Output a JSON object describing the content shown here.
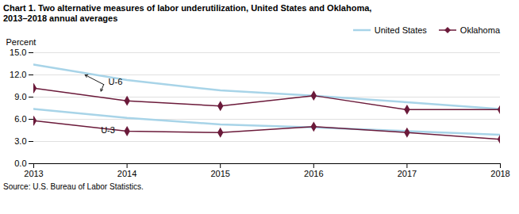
{
  "chart_data": {
    "type": "line",
    "title": "Chart 1. Two alternative measures of labor underutilization, United States and Oklahoma,",
    "subtitle": "2013–2018  annual averages",
    "ylabel": "Percent",
    "source": "Source: U.S. Bureau of Labor Statistics.",
    "x": [
      2013,
      2014,
      2015,
      2016,
      2017,
      2018
    ],
    "xlim": [
      2013,
      2018
    ],
    "xticks": [
      2013,
      2014,
      2015,
      2016,
      2017,
      2018
    ],
    "ylim": [
      0,
      15
    ],
    "yticks": [
      {
        "value": 0,
        "label": "0.0"
      },
      {
        "value": 3,
        "label": "3.0"
      },
      {
        "value": 6,
        "label": "6.0"
      },
      {
        "value": 9,
        "label": "9.0"
      },
      {
        "value": 12,
        "label": "12.0"
      },
      {
        "value": 15,
        "label": "15.0"
      }
    ],
    "grid": true,
    "legend": "upper right",
    "series": [
      {
        "name": "United States",
        "color": "#a8d4e8",
        "values": [
          13.4,
          11.3,
          9.9,
          9.2,
          8.3,
          7.4
        ]
      },
      {
        "name": "United States",
        "color": "#a8d4e8",
        "values": [
          7.4,
          6.2,
          5.3,
          4.9,
          4.4,
          3.9
        ]
      },
      {
        "name": "Oklahoma",
        "color": "#6b1a3a",
        "marker": "diamond",
        "values": [
          10.2,
          8.5,
          7.8,
          9.2,
          7.3,
          7.3
        ]
      },
      {
        "name": "Oklahoma",
        "color": "#6b1a3a",
        "marker": "diamond",
        "values": [
          5.8,
          4.4,
          4.2,
          5.0,
          4.2,
          3.3
        ]
      }
    ],
    "annotations": [
      {
        "text": "U-6",
        "x": 2013.8,
        "y": 11.0,
        "arrow_from": [
          2013.75,
          10.7
        ],
        "arrows_to": [
          [
            2013.55,
            12.0
          ],
          [
            2013.72,
            9.8
          ]
        ]
      },
      {
        "text": "U-3",
        "x": 2013.72,
        "y": 4.55
      }
    ]
  }
}
